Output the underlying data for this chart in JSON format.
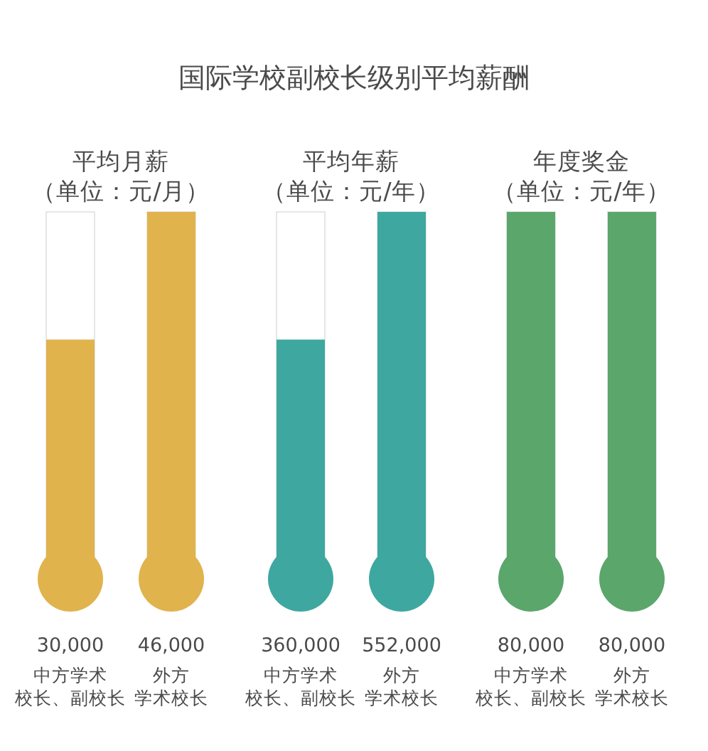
{
  "chart_data": [
    {
      "type": "other",
      "title": "国际学校副校长级别平均薪酬"
    },
    {
      "type": "bar",
      "title": "平均月薪",
      "subtitle": "（单位：元/月）",
      "categories": [
        "中方学术校长、副校长",
        "外方学术校长"
      ],
      "values": [
        30000,
        46000
      ],
      "value_labels": [
        "30,000",
        "46,000"
      ],
      "color": "#e0b34d"
    },
    {
      "type": "bar",
      "title": "平均年薪",
      "subtitle": "（单位：元/年）",
      "categories": [
        "中方学术校长、副校长",
        "外方学术校长"
      ],
      "values": [
        360000,
        552000
      ],
      "value_labels": [
        "360,000",
        "552,000"
      ],
      "color": "#3ea8a0"
    },
    {
      "type": "bar",
      "title": "年度奖金",
      "subtitle": "（单位：元/年）",
      "categories": [
        "中方学术校长、副校长",
        "外方学术校长"
      ],
      "values": [
        80000,
        80000
      ],
      "value_labels": [
        "80,000",
        "80,000"
      ],
      "color": "#5aa66b"
    }
  ]
}
